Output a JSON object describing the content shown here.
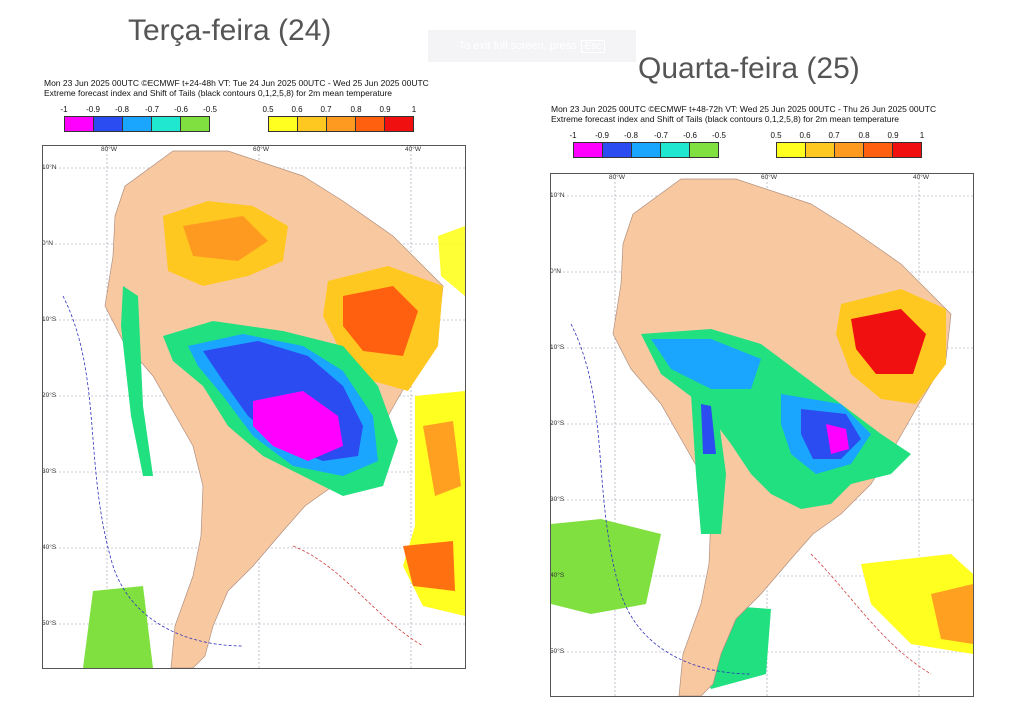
{
  "overlay": {
    "text": "To exit full screen, press",
    "key": "Esc"
  },
  "panels": [
    {
      "title": "Terça-feira (24)",
      "line1": "Mon 23 Jun 2025 00UTC ©ECMWF t+24-48h  VT: Tue 24 Jun 2025 00UTC - Wed 25 Jun 2025 00UTC",
      "line2": "Extreme forecast index and Shift of Tails (black contours 0,1,2,5,8) for 2m mean temperature",
      "neg_ticks": [
        "-1",
        "-0.9",
        "-0.8",
        "-0.7",
        "-0.6",
        "-0.5"
      ],
      "pos_ticks": [
        "0.5",
        "0.6",
        "0.7",
        "0.8",
        "0.9",
        "1"
      ],
      "lat_labels": [
        "10°N",
        "0°N",
        "10°S",
        "20°S",
        "30°S",
        "40°S",
        "50°S"
      ],
      "lon_labels": [
        "80°W",
        "60°W",
        "40°W"
      ]
    },
    {
      "title": "Quarta-feira (25)",
      "line1": "Mon 23 Jun 2025 00UTC ©ECMWF t+48-72h  VT: Wed 25 Jun 2025 00UTC - Thu 26 Jun 2025 00UTC",
      "line2": "Extreme forecast index and Shift of Tails (black contours 0,1,2,5,8) for 2m mean temperature",
      "neg_ticks": [
        "-1",
        "-0.9",
        "-0.8",
        "-0.7",
        "-0.6",
        "-0.5"
      ],
      "pos_ticks": [
        "0.5",
        "0.6",
        "0.7",
        "0.8",
        "0.9",
        "1"
      ],
      "lat_labels": [
        "10°N",
        "0°N",
        "10°S",
        "20°S",
        "30°S",
        "40°S",
        "50°S"
      ],
      "lon_labels": [
        "80°W",
        "60°W",
        "40°W"
      ]
    }
  ],
  "colors": {
    "neg": [
      "#ff00ff",
      "#2b4cf0",
      "#1aa6ff",
      "#20e8d0",
      "#20e080",
      "#80e040"
    ],
    "pos": [
      "#ffff20",
      "#ffd020",
      "#ffa020",
      "#ff7010",
      "#ff3010",
      "#e00010"
    ],
    "land": "#f8c8a0",
    "ocean": "#ffffff"
  }
}
